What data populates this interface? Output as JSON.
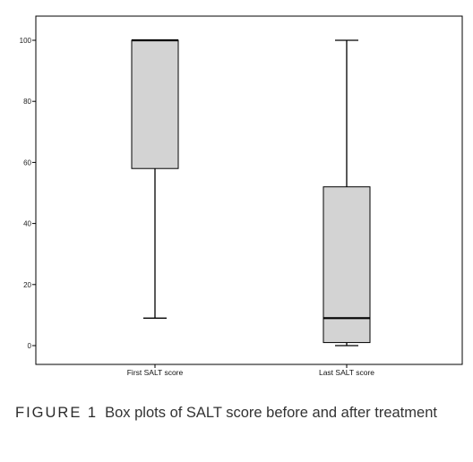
{
  "chart_data": {
    "type": "box",
    "categories": [
      "First SALT score",
      "Last SALT score"
    ],
    "boxes": [
      {
        "category": "First SALT score",
        "min": 9,
        "q1": 58,
        "median": 100,
        "q3": 100,
        "max": 100
      },
      {
        "category": "Last SALT score",
        "min": 0,
        "q1": 1,
        "median": 9,
        "q3": 52,
        "max": 100
      }
    ],
    "yticks": [
      0,
      20,
      40,
      60,
      80,
      100
    ],
    "ylim": [
      0,
      100
    ],
    "title": "",
    "xlabel": "",
    "ylabel": "",
    "grid": false,
    "colors": {
      "box_fill": "#d3d3d3",
      "stroke": "#000000"
    }
  },
  "caption": {
    "label": "FIGURE 1",
    "text": "Box plots of SALT score before and after treatment"
  }
}
